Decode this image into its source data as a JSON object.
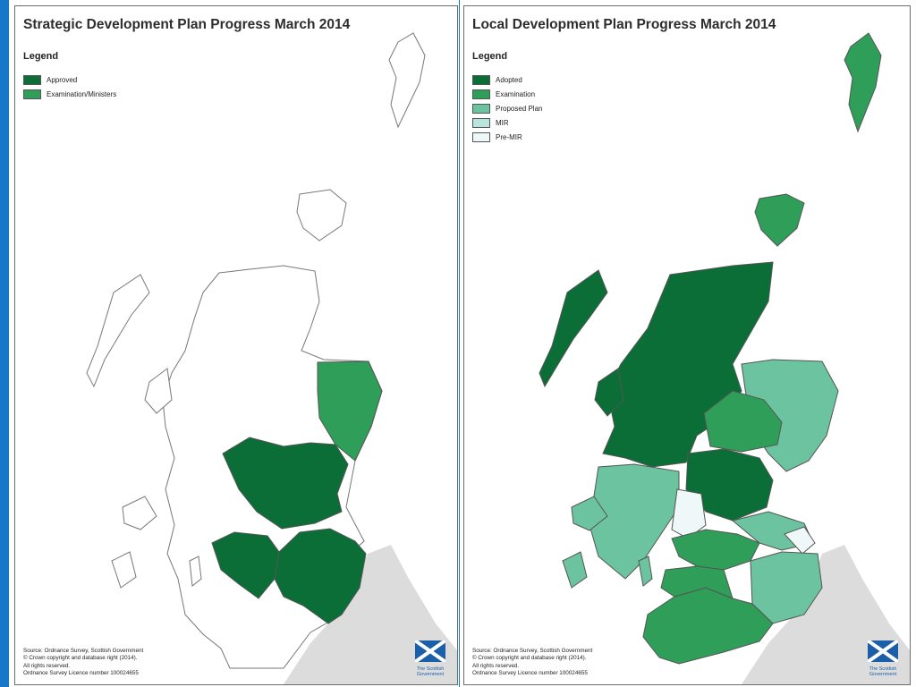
{
  "colors": {
    "frame": "#1777c8",
    "adopted": "#0b6e36",
    "examination": "#2e9e58",
    "proposed": "#6cc3a0",
    "mir": "#b8e5dd",
    "premir": "#eef8f8",
    "sea_land_outline": "#777777",
    "england": "#dcdcdc"
  },
  "left": {
    "title": "Strategic Development Plan Progress March 2014",
    "legend_title": "Legend",
    "legend": [
      {
        "label": "Approved",
        "color": "#0b6e36"
      },
      {
        "label": "Examination/Ministers",
        "color": "#2e9e58"
      }
    ],
    "source": [
      "Source: Ordnance Survey, Scottish Government",
      "© Crown copyright and database right (2014).",
      "All rights reserved.",
      "Ordnance Survey Licence number 100024655"
    ],
    "logo_text": [
      "The Scottish",
      "Government"
    ]
  },
  "right": {
    "title": "Local Development Plan Progress March 2014",
    "legend_title": "Legend",
    "legend": [
      {
        "label": "Adopted",
        "color": "#0b6e36"
      },
      {
        "label": "Examination",
        "color": "#2e9e58"
      },
      {
        "label": "Proposed Plan",
        "color": "#6cc3a0"
      },
      {
        "label": "MIR",
        "color": "#b8e5dd"
      },
      {
        "label": "Pre-MIR",
        "color": "#eef8f8"
      }
    ],
    "source": [
      "Source: Ordnance Survey, Scottish Government",
      "© Crown copyright and database right (2014).",
      "All rights reserved.",
      "Ordnance Survey Licence number 100024655"
    ],
    "logo_text": [
      "The Scottish",
      "Government"
    ]
  }
}
